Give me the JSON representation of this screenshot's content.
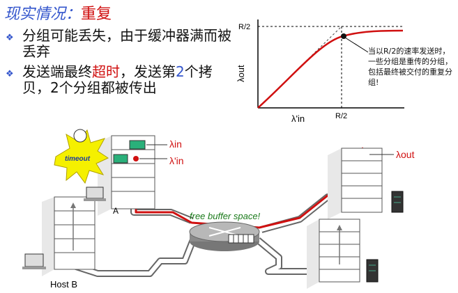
{
  "title": {
    "prefix": "现实情况：",
    "highlight": "重复"
  },
  "bullets": [
    {
      "text": "分组可能丢失，由于缓冲器满而被丢弃"
    },
    {
      "before": "发送端最终",
      "highlight": "超时",
      "middle": "，发送第",
      "blue": "2",
      "after": "个拷贝，2个分组都被传出"
    }
  ],
  "graph": {
    "y_tick": "R/2",
    "x_tick": "R/2",
    "y_label": "λout",
    "x_label": "λ'in",
    "annotation": "当以R/2的速率发送时，一些分组是重传的分组，包括最终被交付的重复分组!"
  },
  "network": {
    "timeout_label": "timeout",
    "lambda_in": "λin",
    "lambda_in_prime": "λ'in",
    "lambda_out": "λout",
    "host_a": "A",
    "host_b": "Host B",
    "buffer_label": "free buffer space!"
  },
  "colors": {
    "red": "#d01010",
    "blue": "#3355cc",
    "green": "#1a7a1a"
  }
}
